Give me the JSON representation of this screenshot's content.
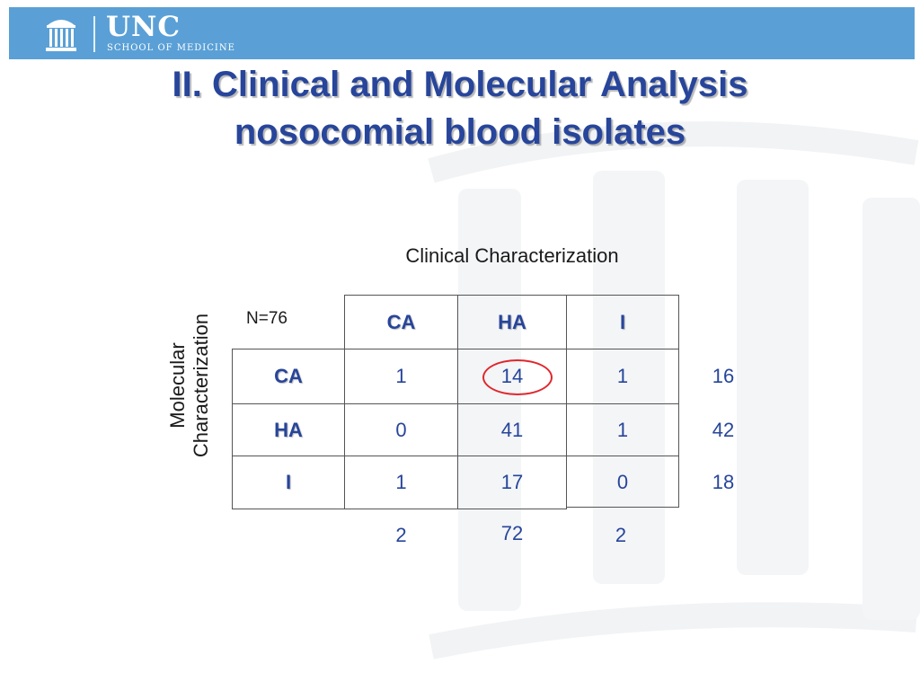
{
  "header": {
    "logo_name": "UNC",
    "logo_subtitle": "SCHOOL OF MEDICINE"
  },
  "title": {
    "line1": "II.  Clinical and Molecular Analysis",
    "line2": "nosocomial blood isolates"
  },
  "table": {
    "column_axis_label": "Clinical Characterization",
    "row_axis_label_line1": "Molecular",
    "row_axis_label_line2": "Characterization",
    "n_label": "N=76",
    "column_headers": [
      "CA",
      "HA",
      "I"
    ],
    "rows": [
      {
        "label": "CA",
        "values": [
          "1",
          "14",
          "1"
        ],
        "total": "16"
      },
      {
        "label": "HA",
        "values": [
          "0",
          "41",
          "1"
        ],
        "total": "42"
      },
      {
        "label": "I",
        "values": [
          "1",
          "17",
          "0"
        ],
        "total": "18"
      }
    ],
    "column_totals": [
      "2",
      "72",
      "2"
    ],
    "highlighted_cell": "CA / HA = 14"
  },
  "colors": {
    "header_bar": "#5aa0d6",
    "title_text": "#27459a",
    "table_text": "#27459a",
    "highlight_ring": "#e0262d"
  }
}
